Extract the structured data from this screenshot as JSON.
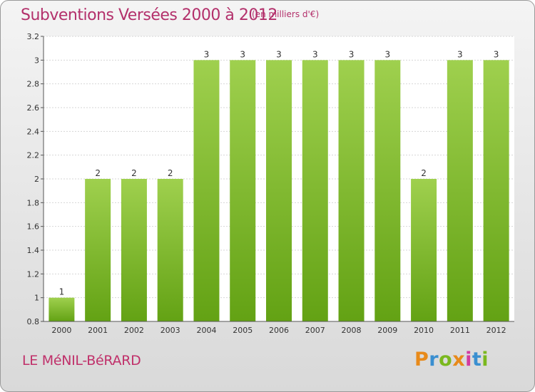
{
  "header": {
    "title": "Subventions Versées 2000 à 2012",
    "unit": "(en milliers d'€)"
  },
  "footer": {
    "commune": "LE MéNIL-BéRARD",
    "logo": "Proxiti"
  },
  "colors": {
    "bar_top": "#9fd04e",
    "bar_bottom": "#63a214",
    "title": "#b3306b",
    "logo": [
      "#e88a1a",
      "#3a8fd0",
      "#7ab81e",
      "#e88a1a",
      "#d33aa0",
      "#3a8fd0",
      "#7ab81e"
    ]
  },
  "chart_data": {
    "type": "bar",
    "title": "Subventions Versées 2000 à 2012",
    "subtitle": "(en milliers d'€)",
    "categories": [
      "2000",
      "2001",
      "2002",
      "2003",
      "2004",
      "2005",
      "2006",
      "2007",
      "2008",
      "2009",
      "2010",
      "2011",
      "2012"
    ],
    "values": [
      1,
      2,
      2,
      2,
      3,
      3,
      3,
      3,
      3,
      3,
      2,
      3,
      3
    ],
    "data_labels": [
      "1",
      "2",
      "2",
      "2",
      "3",
      "3",
      "3",
      "3",
      "3",
      "3",
      "2",
      "3",
      "3"
    ],
    "ylim": [
      0.8,
      3.2
    ],
    "yticks": [
      0.8,
      1,
      1.2,
      1.4,
      1.6,
      1.8,
      2,
      2.2,
      2.4,
      2.6,
      2.8,
      3,
      3.2
    ],
    "ytick_labels": [
      "0.8",
      "1",
      "1.2",
      "1.4",
      "1.6",
      "1.8",
      "2",
      "2.2",
      "2.4",
      "2.6",
      "2.8",
      "3",
      "3.2"
    ],
    "grid": true
  }
}
